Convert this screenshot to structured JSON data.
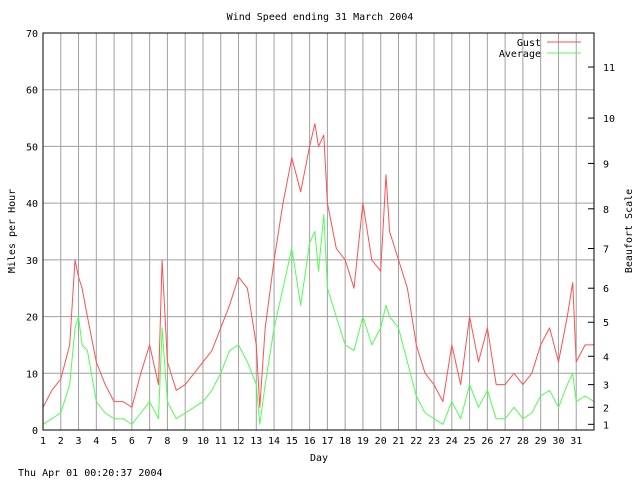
{
  "chart_data": {
    "type": "line",
    "title": "Wind Speed ending 31 March 2004",
    "xlabel": "Day",
    "ylabel": "Miles per Hour",
    "y2label": "Beaufort Scale",
    "footer": "Thu Apr 01 00:20:37 2004",
    "xlim": [
      1,
      32
    ],
    "ylim": [
      0,
      70
    ],
    "x_ticks": [
      "1",
      "2",
      "3",
      "4",
      "5",
      "6",
      "7",
      "8",
      "9",
      "10",
      "11",
      "12",
      "13",
      "14",
      "15",
      "16",
      "17",
      "18",
      "19",
      "20",
      "21",
      "22",
      "23",
      "24",
      "25",
      "26",
      "27",
      "28",
      "29",
      "30",
      "31"
    ],
    "y_ticks": [
      0,
      10,
      20,
      30,
      40,
      50,
      60,
      70
    ],
    "beaufort_ticks": [
      {
        "label": "1",
        "mph": 1
      },
      {
        "label": "2",
        "mph": 4
      },
      {
        "label": "3",
        "mph": 8
      },
      {
        "label": "4",
        "mph": 13
      },
      {
        "label": "5",
        "mph": 19
      },
      {
        "label": "6",
        "mph": 25
      },
      {
        "label": "7",
        "mph": 32
      },
      {
        "label": "8",
        "mph": 39
      },
      {
        "label": "9",
        "mph": 47
      },
      {
        "label": "10",
        "mph": 55
      },
      {
        "label": "11",
        "mph": 64
      }
    ],
    "grid": true,
    "legend_position": "top-right",
    "series": [
      {
        "name": "Gust",
        "color": "#ff5050",
        "x": [
          1.0,
          1.5,
          2.0,
          2.5,
          2.8,
          3.0,
          3.2,
          3.5,
          4.0,
          4.5,
          5.0,
          5.5,
          6.0,
          6.5,
          7.0,
          7.5,
          7.7,
          8.0,
          8.5,
          9.0,
          9.5,
          10.0,
          10.5,
          11.0,
          11.5,
          12.0,
          12.5,
          13.0,
          13.2,
          13.5,
          14.0,
          14.5,
          15.0,
          15.5,
          16.0,
          16.3,
          16.5,
          16.8,
          17.0,
          17.5,
          18.0,
          18.5,
          19.0,
          19.5,
          20.0,
          20.3,
          20.5,
          21.0,
          21.5,
          22.0,
          22.5,
          23.0,
          23.5,
          24.0,
          24.5,
          25.0,
          25.5,
          26.0,
          26.5,
          27.0,
          27.5,
          28.0,
          28.5,
          29.0,
          29.5,
          30.0,
          30.5,
          30.8,
          31.0,
          31.5,
          32.0
        ],
        "values": [
          4,
          7,
          9,
          15,
          30,
          27,
          25,
          20,
          12,
          8,
          5,
          5,
          4,
          10,
          15,
          8,
          30,
          12,
          7,
          8,
          10,
          12,
          14,
          18,
          22,
          27,
          25,
          15,
          4,
          18,
          30,
          40,
          48,
          42,
          50,
          54,
          50,
          52,
          40,
          32,
          30,
          25,
          40,
          30,
          28,
          45,
          35,
          30,
          25,
          15,
          10,
          8,
          5,
          15,
          8,
          20,
          12,
          18,
          8,
          8,
          10,
          8,
          10,
          15,
          18,
          12,
          20,
          26,
          12,
          15,
          15
        ]
      },
      {
        "name": "Average",
        "color": "#50ff50",
        "x": [
          1.0,
          1.5,
          2.0,
          2.5,
          2.8,
          3.0,
          3.2,
          3.5,
          4.0,
          4.5,
          5.0,
          5.5,
          6.0,
          6.5,
          7.0,
          7.5,
          7.7,
          8.0,
          8.5,
          9.0,
          9.5,
          10.0,
          10.5,
          11.0,
          11.5,
          12.0,
          12.5,
          13.0,
          13.2,
          13.5,
          14.0,
          14.5,
          15.0,
          15.5,
          16.0,
          16.3,
          16.5,
          16.8,
          17.0,
          17.5,
          18.0,
          18.5,
          19.0,
          19.5,
          20.0,
          20.3,
          20.5,
          21.0,
          21.5,
          22.0,
          22.5,
          23.0,
          23.5,
          24.0,
          24.5,
          25.0,
          25.5,
          26.0,
          26.5,
          27.0,
          27.5,
          28.0,
          28.5,
          29.0,
          29.5,
          30.0,
          30.5,
          30.8,
          31.0,
          31.5,
          32.0
        ],
        "values": [
          1,
          2,
          3,
          8,
          18,
          20,
          15,
          14,
          5,
          3,
          2,
          2,
          1,
          3,
          5,
          2,
          18,
          5,
          2,
          3,
          4,
          5,
          7,
          10,
          14,
          15,
          12,
          8,
          1,
          8,
          18,
          25,
          32,
          22,
          33,
          35,
          28,
          38,
          25,
          20,
          15,
          14,
          20,
          15,
          18,
          22,
          20,
          18,
          12,
          6,
          3,
          2,
          1,
          5,
          2,
          8,
          4,
          7,
          2,
          2,
          4,
          2,
          3,
          6,
          7,
          4,
          8,
          10,
          5,
          6,
          5
        ]
      }
    ]
  }
}
